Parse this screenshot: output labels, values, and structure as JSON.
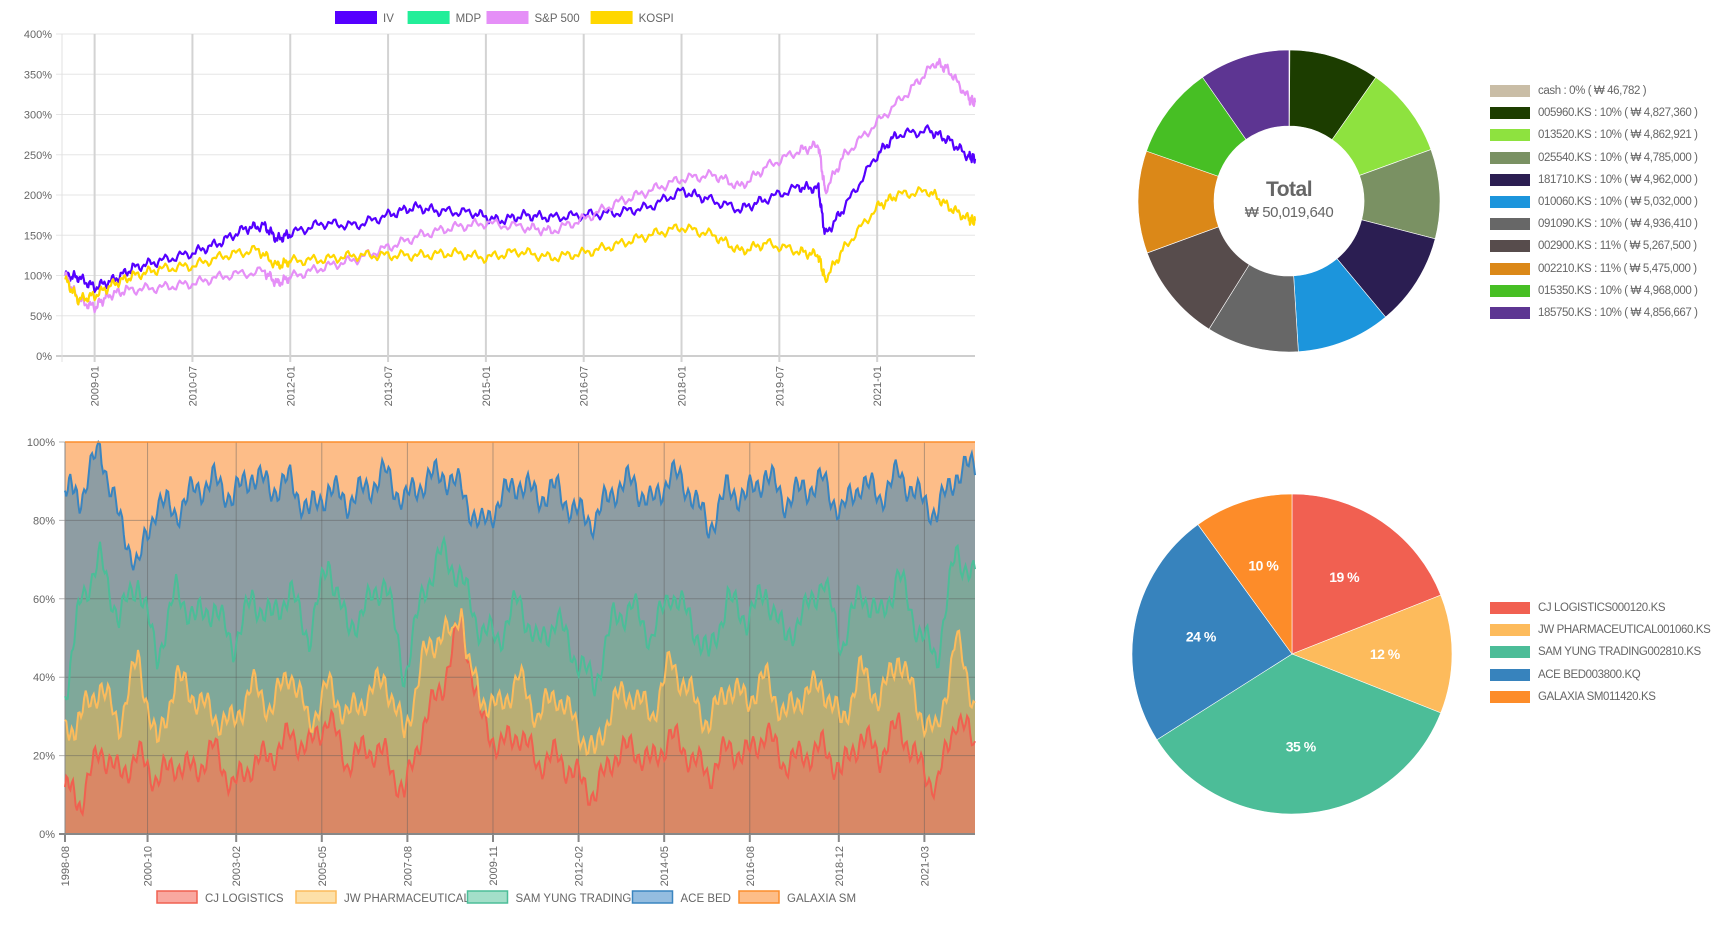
{
  "chart_data": [
    {
      "id": "performance",
      "type": "line",
      "title": "",
      "xlabel": "",
      "ylabel": "",
      "ylim": [
        0,
        400
      ],
      "yticks": [
        "0%",
        "50%",
        "100%",
        "150%",
        "200%",
        "250%",
        "300%",
        "350%",
        "400%"
      ],
      "ytick_values": [
        0,
        50,
        100,
        150,
        200,
        250,
        300,
        350,
        400
      ],
      "xrange_years": [
        2008.5,
        2022.5
      ],
      "xticks": [
        "2009-01",
        "2010-07",
        "2012-01",
        "2013-07",
        "2015-01",
        "2016-07",
        "2018-01",
        "2019-07",
        "2021-01"
      ],
      "xtick_years": [
        2009.0,
        2010.5,
        2012.0,
        2013.5,
        2015.0,
        2016.5,
        2018.0,
        2019.5,
        2021.0
      ],
      "grid": true,
      "legend_position": "top",
      "legend": [
        {
          "name": "IV",
          "color": "#5500ff"
        },
        {
          "name": "MDP",
          "color": "#22ee99"
        },
        {
          "name": "S&P 500",
          "color": "#e58ff7"
        },
        {
          "name": "KOSPI",
          "color": "#ffd700"
        }
      ],
      "series": [
        {
          "name": "IV",
          "color": "#5500ff",
          "x": [
            2008.55,
            2008.75,
            2009.0,
            2009.3,
            2009.6,
            2010.0,
            2010.5,
            2010.9,
            2011.3,
            2011.6,
            2011.8,
            2012.0,
            2012.5,
            2013.0,
            2013.5,
            2013.9,
            2014.3,
            2014.8,
            2015.2,
            2015.6,
            2016.0,
            2016.5,
            2017.0,
            2017.5,
            2018.0,
            2018.4,
            2018.9,
            2019.3,
            2019.8,
            2020.1,
            2020.2,
            2020.5,
            2021.0,
            2021.3,
            2021.8,
            2022.1,
            2022.4,
            2022.5
          ],
          "values": [
            100,
            98,
            85,
            95,
            110,
            118,
            128,
            140,
            158,
            162,
            145,
            152,
            165,
            162,
            175,
            185,
            180,
            178,
            168,
            175,
            172,
            175,
            178,
            185,
            205,
            195,
            182,
            195,
            210,
            208,
            150,
            185,
            250,
            275,
            280,
            268,
            248,
            245
          ]
        },
        {
          "name": "MDP",
          "color": "#22ee99",
          "x": [],
          "values": []
        },
        {
          "name": "S&P 500",
          "color": "#e58ff7",
          "x": [
            2008.55,
            2008.75,
            2009.0,
            2009.2,
            2009.5,
            2010.0,
            2010.5,
            2011.0,
            2011.6,
            2011.8,
            2012.0,
            2012.5,
            2013.0,
            2013.5,
            2014.0,
            2014.5,
            2015.0,
            2015.6,
            2016.0,
            2016.5,
            2017.0,
            2017.5,
            2018.0,
            2018.5,
            2018.9,
            2019.3,
            2019.8,
            2020.1,
            2020.2,
            2020.5,
            2021.0,
            2021.5,
            2021.9,
            2022.1,
            2022.4,
            2022.5
          ],
          "values": [
            100,
            70,
            60,
            75,
            82,
            85,
            90,
            100,
            105,
            90,
            98,
            110,
            120,
            135,
            150,
            160,
            165,
            160,
            155,
            170,
            190,
            205,
            220,
            225,
            210,
            235,
            255,
            262,
            205,
            250,
            290,
            330,
            365,
            355,
            320,
            315
          ]
        },
        {
          "name": "KOSPI",
          "color": "#ffd700",
          "x": [
            2008.55,
            2008.75,
            2009.0,
            2009.3,
            2009.6,
            2010.0,
            2010.5,
            2011.0,
            2011.5,
            2011.8,
            2012.0,
            2012.5,
            2013.0,
            2013.5,
            2014.0,
            2014.5,
            2015.0,
            2015.5,
            2016.0,
            2016.5,
            2017.0,
            2017.5,
            2018.0,
            2018.5,
            2018.9,
            2019.3,
            2019.8,
            2020.1,
            2020.2,
            2020.5,
            2021.0,
            2021.3,
            2021.8,
            2022.1,
            2022.4,
            2022.5
          ],
          "values": [
            95,
            70,
            75,
            90,
            100,
            108,
            112,
            125,
            132,
            112,
            118,
            120,
            125,
            125,
            125,
            128,
            122,
            130,
            122,
            128,
            138,
            150,
            160,
            150,
            130,
            140,
            130,
            125,
            95,
            135,
            185,
            200,
            205,
            185,
            170,
            168
          ]
        }
      ]
    },
    {
      "id": "weights",
      "type": "area",
      "stacked": true,
      "title": "",
      "ylim": [
        0,
        100
      ],
      "yticks": [
        "0%",
        "20%",
        "40%",
        "60%",
        "80%",
        "100%"
      ],
      "ytick_values": [
        0,
        20,
        40,
        60,
        80,
        100
      ],
      "xrange_years": [
        1998.58,
        2022.5
      ],
      "xticks": [
        "1998-08",
        "2000-10",
        "2003-02",
        "2005-05",
        "2007-08",
        "2009-11",
        "2012-02",
        "2014-05",
        "2016-08",
        "2018-12",
        "2021-03"
      ],
      "xtick_years": [
        1998.58,
        2000.75,
        2003.08,
        2005.33,
        2007.58,
        2009.83,
        2012.08,
        2014.33,
        2016.58,
        2018.92,
        2021.17
      ],
      "grid": true,
      "legend_position": "bottom",
      "legend": [
        {
          "name": "CJ LOGISTICS",
          "color": "#f06050",
          "fill": "#f9a8a0"
        },
        {
          "name": "JW PHARMACEUTICAL",
          "color": "#fcbb5c",
          "fill": "#fde0a8"
        },
        {
          "name": "SAM YUNG TRADING",
          "color": "#4cbd98",
          "fill": "#a3dfc9"
        },
        {
          "name": "ACE BED",
          "color": "#3a85c0",
          "fill": "#94bde0"
        },
        {
          "name": "GALAXIA SM",
          "color": "#fc8d2c",
          "fill": "#fdbd88"
        }
      ],
      "x": [
        1998.58,
        1999.0,
        1999.5,
        2000.0,
        2000.5,
        2001.0,
        2001.5,
        2002.0,
        2002.5,
        2003.0,
        2003.5,
        2004.0,
        2004.5,
        2005.0,
        2005.5,
        2006.0,
        2006.5,
        2007.0,
        2007.5,
        2008.0,
        2008.5,
        2009.0,
        2009.5,
        2010.0,
        2010.5,
        2011.0,
        2011.5,
        2012.0,
        2012.5,
        2013.0,
        2013.5,
        2014.0,
        2014.5,
        2015.0,
        2015.5,
        2016.0,
        2016.5,
        2017.0,
        2017.5,
        2018.0,
        2018.5,
        2019.0,
        2019.5,
        2020.0,
        2020.5,
        2021.0,
        2021.5,
        2022.0,
        2022.5
      ],
      "series_cumulative": [
        {
          "name": "CJ LOGISTICS",
          "values": [
            12,
            8,
            22,
            15,
            20,
            14,
            18,
            16,
            22,
            12,
            18,
            20,
            25,
            22,
            30,
            18,
            22,
            20,
            10,
            28,
            38,
            55,
            30,
            22,
            26,
            18,
            20,
            15,
            10,
            20,
            22,
            18,
            25,
            20,
            15,
            22,
            20,
            26,
            18,
            20,
            22,
            16,
            25,
            20,
            28,
            18,
            12,
            30,
            23
          ]
        },
        {
          "name": "JW PHARMACEUTICAL",
          "values": [
            25,
            30,
            38,
            28,
            45,
            22,
            40,
            35,
            30,
            28,
            38,
            32,
            42,
            28,
            38,
            30,
            35,
            40,
            25,
            45,
            52,
            48,
            35,
            32,
            40,
            30,
            36,
            28,
            20,
            34,
            36,
            30,
            44,
            36,
            28,
            38,
            34,
            40,
            30,
            36,
            38,
            28,
            42,
            34,
            46,
            32,
            25,
            50,
            33
          ]
        },
        {
          "name": "SAM YUNG TRADING",
          "values": [
            35,
            60,
            70,
            55,
            65,
            45,
            62,
            55,
            58,
            48,
            60,
            55,
            62,
            50,
            70,
            52,
            58,
            65,
            40,
            62,
            72,
            65,
            52,
            50,
            60,
            48,
            55,
            45,
            38,
            55,
            58,
            50,
            62,
            55,
            45,
            60,
            55,
            62,
            50,
            56,
            65,
            48,
            62,
            55,
            66,
            52,
            45,
            72,
            65
          ]
        },
        {
          "name": "ACE BED",
          "values": [
            88,
            86,
            99,
            80,
            68,
            85,
            82,
            88,
            90,
            86,
            92,
            88,
            90,
            82,
            88,
            85,
            88,
            92,
            85,
            90,
            92,
            88,
            78,
            85,
            90,
            86,
            88,
            82,
            80,
            88,
            90,
            84,
            92,
            88,
            78,
            88,
            86,
            92,
            85,
            88,
            90,
            82,
            90,
            86,
            92,
            86,
            82,
            92,
            94
          ]
        },
        {
          "name": "GALAXIA SM",
          "values": [
            100,
            100,
            100,
            100,
            100,
            100,
            100,
            100,
            100,
            100,
            100,
            100,
            100,
            100,
            100,
            100,
            100,
            100,
            100,
            100,
            100,
            100,
            100,
            100,
            100,
            100,
            100,
            100,
            100,
            100,
            100,
            100,
            100,
            100,
            100,
            100,
            100,
            100,
            100,
            100,
            100,
            100,
            100,
            100,
            100,
            100,
            100,
            100,
            100
          ]
        }
      ]
    },
    {
      "id": "holdings",
      "type": "pie",
      "donut": true,
      "center_title": "Total",
      "center_value": "₩ 50,019,640",
      "legend_position": "right",
      "labels": [
        "cash",
        "005960.KS",
        "013520.KS",
        "025540.KS",
        "181710.KS",
        "010060.KS",
        "091090.KS",
        "002900.KS",
        "002210.KS",
        "015350.KS",
        "185750.KS"
      ],
      "legend_labels": [
        "cash : 0% ( ₩ 46,782 )",
        "005960.KS : 10% ( ₩ 4,827,360 )",
        "013520.KS : 10% ( ₩ 4,862,921 )",
        "025540.KS : 10% ( ₩ 4,785,000 )",
        "181710.KS : 10% ( ₩ 4,962,000 )",
        "010060.KS : 10% ( ₩ 5,032,000 )",
        "091090.KS : 10% ( ₩ 4,936,410 )",
        "002900.KS : 11% ( ₩ 5,267,500 )",
        "002210.KS : 11% ( ₩ 5,475,000 )",
        "015350.KS : 10% ( ₩ 4,968,000 )",
        "185750.KS : 10% ( ₩ 4,856,667 )"
      ],
      "values": [
        46782,
        4827360,
        4862921,
        4785000,
        4962000,
        5032000,
        4936410,
        5267500,
        5475000,
        4968000,
        4856667
      ],
      "colors": [
        "#c9bda6",
        "#1c3d00",
        "#8ee23f",
        "#7a9163",
        "#2b1e52",
        "#1c95dc",
        "#676767",
        "#574c4c",
        "#db8818",
        "#47bf24",
        "#5d3592"
      ]
    },
    {
      "id": "allocation",
      "type": "pie",
      "donut": false,
      "legend_position": "right",
      "labels": [
        "CJ LOGISTICS000120.KS",
        "JW PHARMACEUTICAL001060.KS",
        "SAM YUNG TRADING002810.KS",
        "ACE BED003800.KQ",
        "GALAXIA SM011420.KS"
      ],
      "values": [
        19,
        12,
        35,
        24,
        10
      ],
      "value_labels": [
        "19 %",
        "12 %",
        "35 %",
        "24 %",
        "10 %"
      ],
      "colors": [
        "#f16051",
        "#fdbb5c",
        "#4cbd98",
        "#3783bd",
        "#fd8c29"
      ]
    }
  ]
}
